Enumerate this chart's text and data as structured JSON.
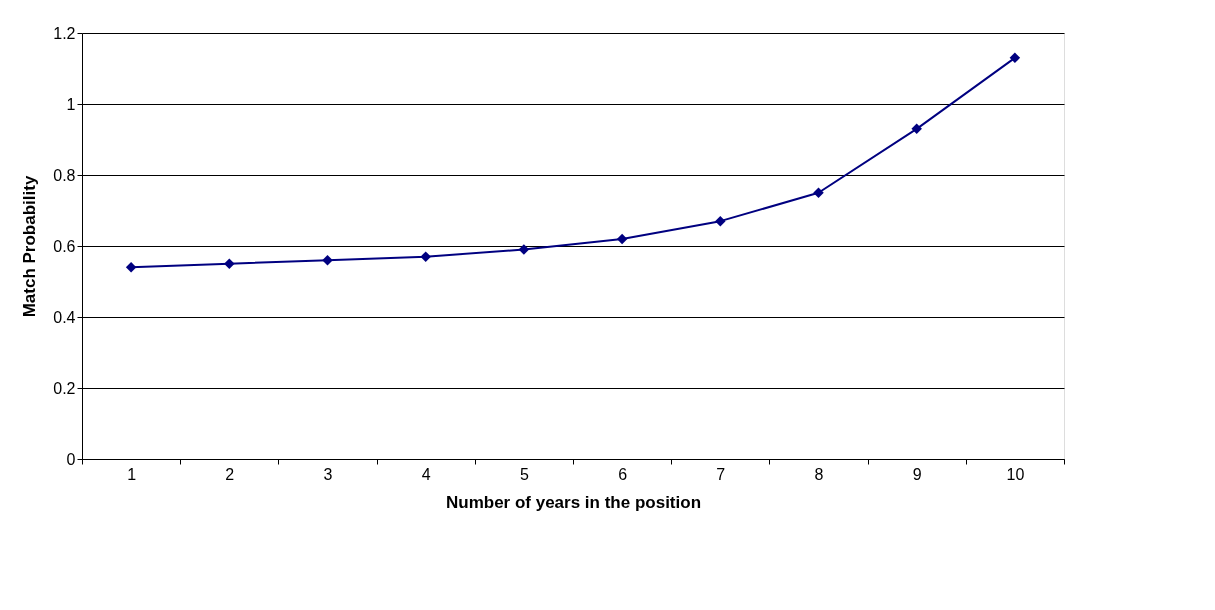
{
  "chart_data": {
    "type": "line",
    "xlabel": "Number of years in the position",
    "ylabel": "Match Probability",
    "categories": [
      "1",
      "2",
      "3",
      "4",
      "5",
      "6",
      "7",
      "8",
      "9",
      "10"
    ],
    "series": [
      {
        "color": "#000080",
        "values": [
          0.54,
          0.55,
          0.56,
          0.57,
          0.59,
          0.62,
          0.67,
          0.75,
          0.93,
          1.13
        ]
      }
    ],
    "ylim": [
      0,
      1.2
    ],
    "yticks": [
      0,
      0.2,
      0.4,
      0.6,
      0.8,
      1,
      1.2
    ],
    "grid": "y",
    "marker": "diamond",
    "line_style": "solid"
  }
}
